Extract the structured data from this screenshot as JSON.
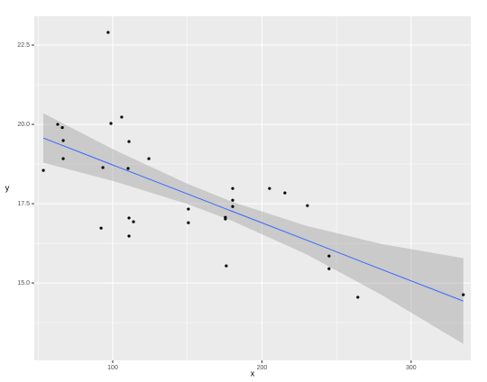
{
  "chart_data": {
    "type": "scatter",
    "x_label": "x",
    "y_label": "y",
    "xlim": [
      47.4,
      340
    ],
    "ylim": [
      12.56,
      23.41
    ],
    "xticks": [
      100,
      200,
      300
    ],
    "yticks": [
      {
        "value": 15,
        "label": "15.0"
      },
      17.5,
      {
        "value": 20,
        "label": "20.0"
      },
      22.5
    ],
    "grid": true,
    "panel_color": "#ebebeb",
    "point_color": "#000000",
    "x": [
      53.5,
      63.1,
      66.2,
      66.8,
      66.8,
      96.9,
      93.4,
      92.2,
      98.8,
      106,
      110.3,
      110.9,
      110.9,
      113.9,
      110.9,
      124.2,
      150.7,
      150.7,
      175.5,
      175.5,
      176.1,
      180.4,
      180.4,
      180.4,
      205.1,
      215.4,
      230.5,
      245,
      245,
      264.3,
      335
    ],
    "y": [
      18.55,
      20.0,
      19.9,
      19.49,
      18.92,
      22.9,
      18.64,
      16.73,
      20.03,
      20.23,
      18.61,
      19.46,
      17.05,
      16.93,
      16.48,
      18.92,
      17.33,
      16.9,
      17.07,
      17.02,
      15.54,
      17.98,
      17.61,
      17.41,
      17.98,
      17.84,
      17.44,
      15.85,
      15.45,
      14.55,
      14.63
    ],
    "smooth": {
      "color": "#3366ff",
      "band_color": "#999999",
      "x": [
        53.5,
        100,
        150,
        180,
        230,
        280,
        335
      ],
      "fit": [
        19.57,
        18.72,
        17.81,
        17.26,
        16.35,
        15.43,
        14.43
      ],
      "lower": [
        18.79,
        18.22,
        17.49,
        16.96,
        15.9,
        14.63,
        13.08
      ],
      "upper": [
        20.35,
        19.22,
        18.13,
        17.56,
        16.8,
        16.23,
        15.78
      ]
    }
  }
}
